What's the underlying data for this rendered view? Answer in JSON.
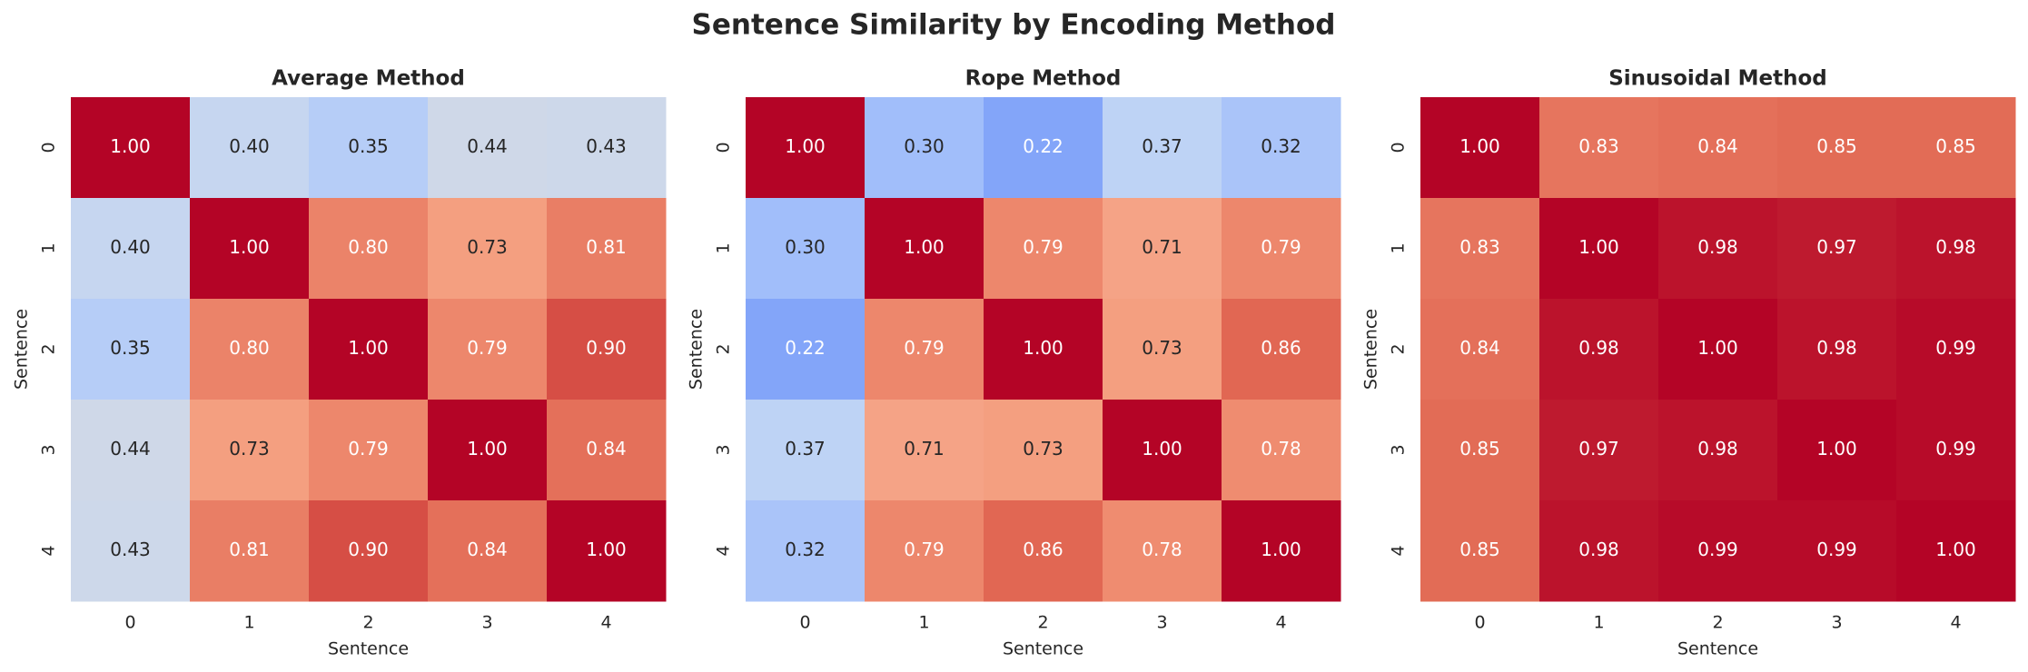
{
  "title": "Sentence Similarity by Encoding Method",
  "chart_data": [
    {
      "type": "heatmap",
      "title": "Average Method",
      "xlabel": "Sentence",
      "ylabel": "Sentence",
      "cmap": "coolwarm",
      "vmin": 0,
      "vmax": 1,
      "x_categories": [
        "0",
        "1",
        "2",
        "3",
        "4"
      ],
      "y_categories": [
        "0",
        "1",
        "2",
        "3",
        "4"
      ],
      "values": [
        [
          1,
          0.4,
          0.35,
          0.44,
          0.43
        ],
        [
          0.4,
          1,
          0.8,
          0.73,
          0.81
        ],
        [
          0.35,
          0.8,
          1,
          0.79,
          0.9
        ],
        [
          0.44,
          0.73,
          0.79,
          1,
          0.84
        ],
        [
          0.43,
          0.81,
          0.9,
          0.84,
          1
        ]
      ],
      "value_labels": [
        [
          "1.00",
          "0.40",
          "0.35",
          "0.44",
          "0.43"
        ],
        [
          "0.40",
          "1.00",
          "0.80",
          "0.73",
          "0.81"
        ],
        [
          "0.35",
          "0.80",
          "1.00",
          "0.79",
          "0.90"
        ],
        [
          "0.44",
          "0.73",
          "0.79",
          "1.00",
          "0.84"
        ],
        [
          "0.43",
          "0.81",
          "0.90",
          "0.84",
          "1.00"
        ]
      ]
    },
    {
      "type": "heatmap",
      "title": "Rope Method",
      "xlabel": "Sentence",
      "ylabel": "Sentence",
      "cmap": "coolwarm",
      "vmin": 0,
      "vmax": 1,
      "x_categories": [
        "0",
        "1",
        "2",
        "3",
        "4"
      ],
      "y_categories": [
        "0",
        "1",
        "2",
        "3",
        "4"
      ],
      "values": [
        [
          1,
          0.3,
          0.22,
          0.37,
          0.32
        ],
        [
          0.3,
          1,
          0.79,
          0.71,
          0.79
        ],
        [
          0.22,
          0.79,
          1,
          0.73,
          0.86
        ],
        [
          0.37,
          0.71,
          0.73,
          1,
          0.78
        ],
        [
          0.32,
          0.79,
          0.86,
          0.78,
          1
        ]
      ],
      "value_labels": [
        [
          "1.00",
          "0.30",
          "0.22",
          "0.37",
          "0.32"
        ],
        [
          "0.30",
          "1.00",
          "0.79",
          "0.71",
          "0.79"
        ],
        [
          "0.22",
          "0.79",
          "1.00",
          "0.73",
          "0.86"
        ],
        [
          "0.37",
          "0.71",
          "0.73",
          "1.00",
          "0.78"
        ],
        [
          "0.32",
          "0.79",
          "0.86",
          "0.78",
          "1.00"
        ]
      ]
    },
    {
      "type": "heatmap",
      "title": "Sinusoidal Method",
      "xlabel": "Sentence",
      "ylabel": "Sentence",
      "cmap": "coolwarm",
      "vmin": 0,
      "vmax": 1,
      "x_categories": [
        "0",
        "1",
        "2",
        "3",
        "4"
      ],
      "y_categories": [
        "0",
        "1",
        "2",
        "3",
        "4"
      ],
      "values": [
        [
          1,
          0.83,
          0.84,
          0.85,
          0.85
        ],
        [
          0.83,
          1,
          0.98,
          0.97,
          0.98
        ],
        [
          0.84,
          0.98,
          1,
          0.98,
          0.99
        ],
        [
          0.85,
          0.97,
          0.98,
          1,
          0.99
        ],
        [
          0.85,
          0.98,
          0.99,
          0.99,
          1
        ]
      ],
      "value_labels": [
        [
          "1.00",
          "0.83",
          "0.84",
          "0.85",
          "0.85"
        ],
        [
          "0.83",
          "1.00",
          "0.98",
          "0.97",
          "0.98"
        ],
        [
          "0.84",
          "0.98",
          "1.00",
          "0.98",
          "0.99"
        ],
        [
          "0.85",
          "0.97",
          "0.98",
          "1.00",
          "0.99"
        ],
        [
          "0.85",
          "0.98",
          "0.99",
          "0.99",
          "1.00"
        ]
      ]
    }
  ]
}
